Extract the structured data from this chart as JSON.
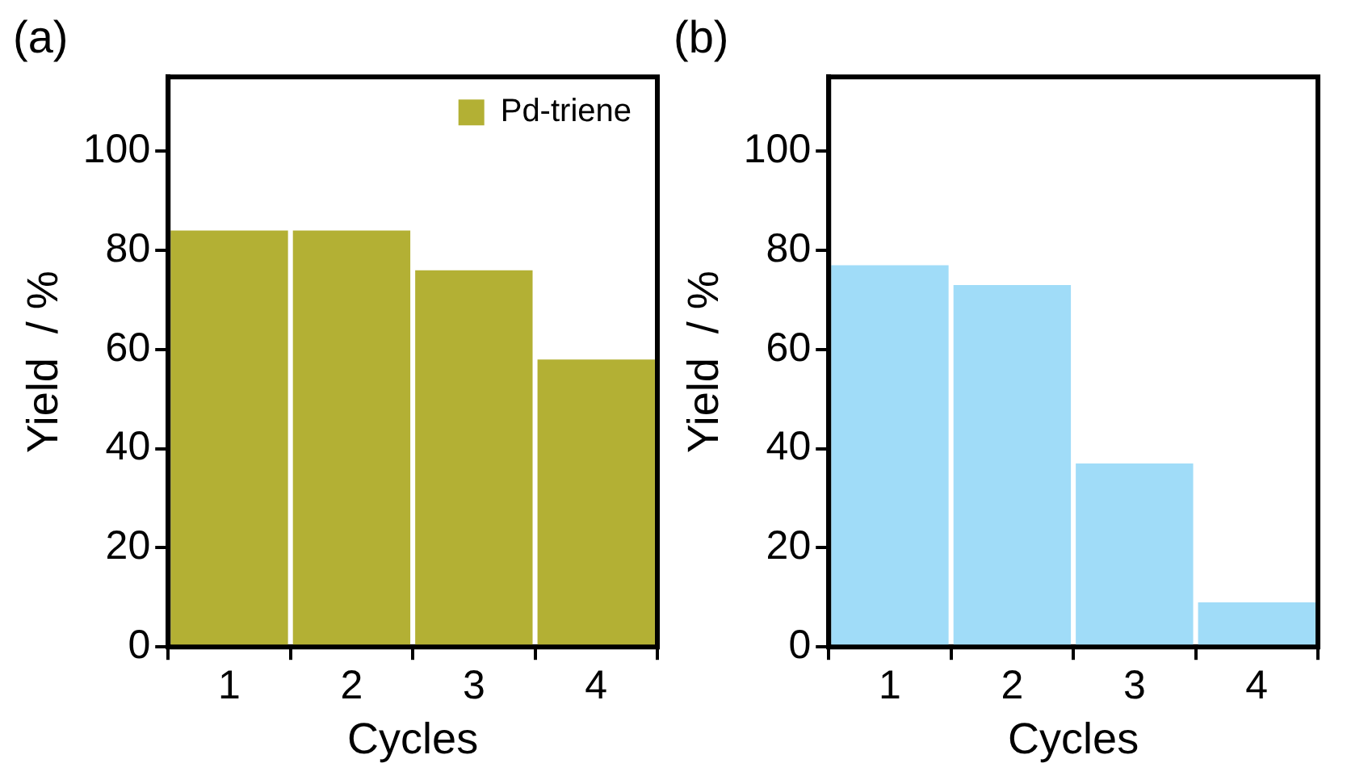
{
  "chart_data": [
    {
      "type": "bar",
      "title": "(a)",
      "xlabel": "Cycles",
      "ylabel": "Yield  / %",
      "categories": [
        "1",
        "2",
        "3",
        "4"
      ],
      "series": [
        {
          "name": "Pd-triene",
          "color": "#b3b034",
          "values": [
            84,
            84,
            76,
            58
          ]
        }
      ],
      "ylim": [
        0,
        115
      ],
      "yticks": [
        0,
        20,
        40,
        60,
        80,
        100
      ],
      "grid": false,
      "legend": "top right"
    },
    {
      "type": "bar",
      "title": "(b)",
      "xlabel": "Cycles",
      "ylabel": "Yield  / %",
      "categories": [
        "1",
        "2",
        "3",
        "4"
      ],
      "series": [
        {
          "color": "#a0dcf8",
          "values": [
            77,
            73,
            37,
            9
          ]
        }
      ],
      "ylim": [
        0,
        115
      ],
      "yticks": [
        0,
        20,
        40,
        60,
        80,
        100
      ],
      "grid": false
    }
  ]
}
